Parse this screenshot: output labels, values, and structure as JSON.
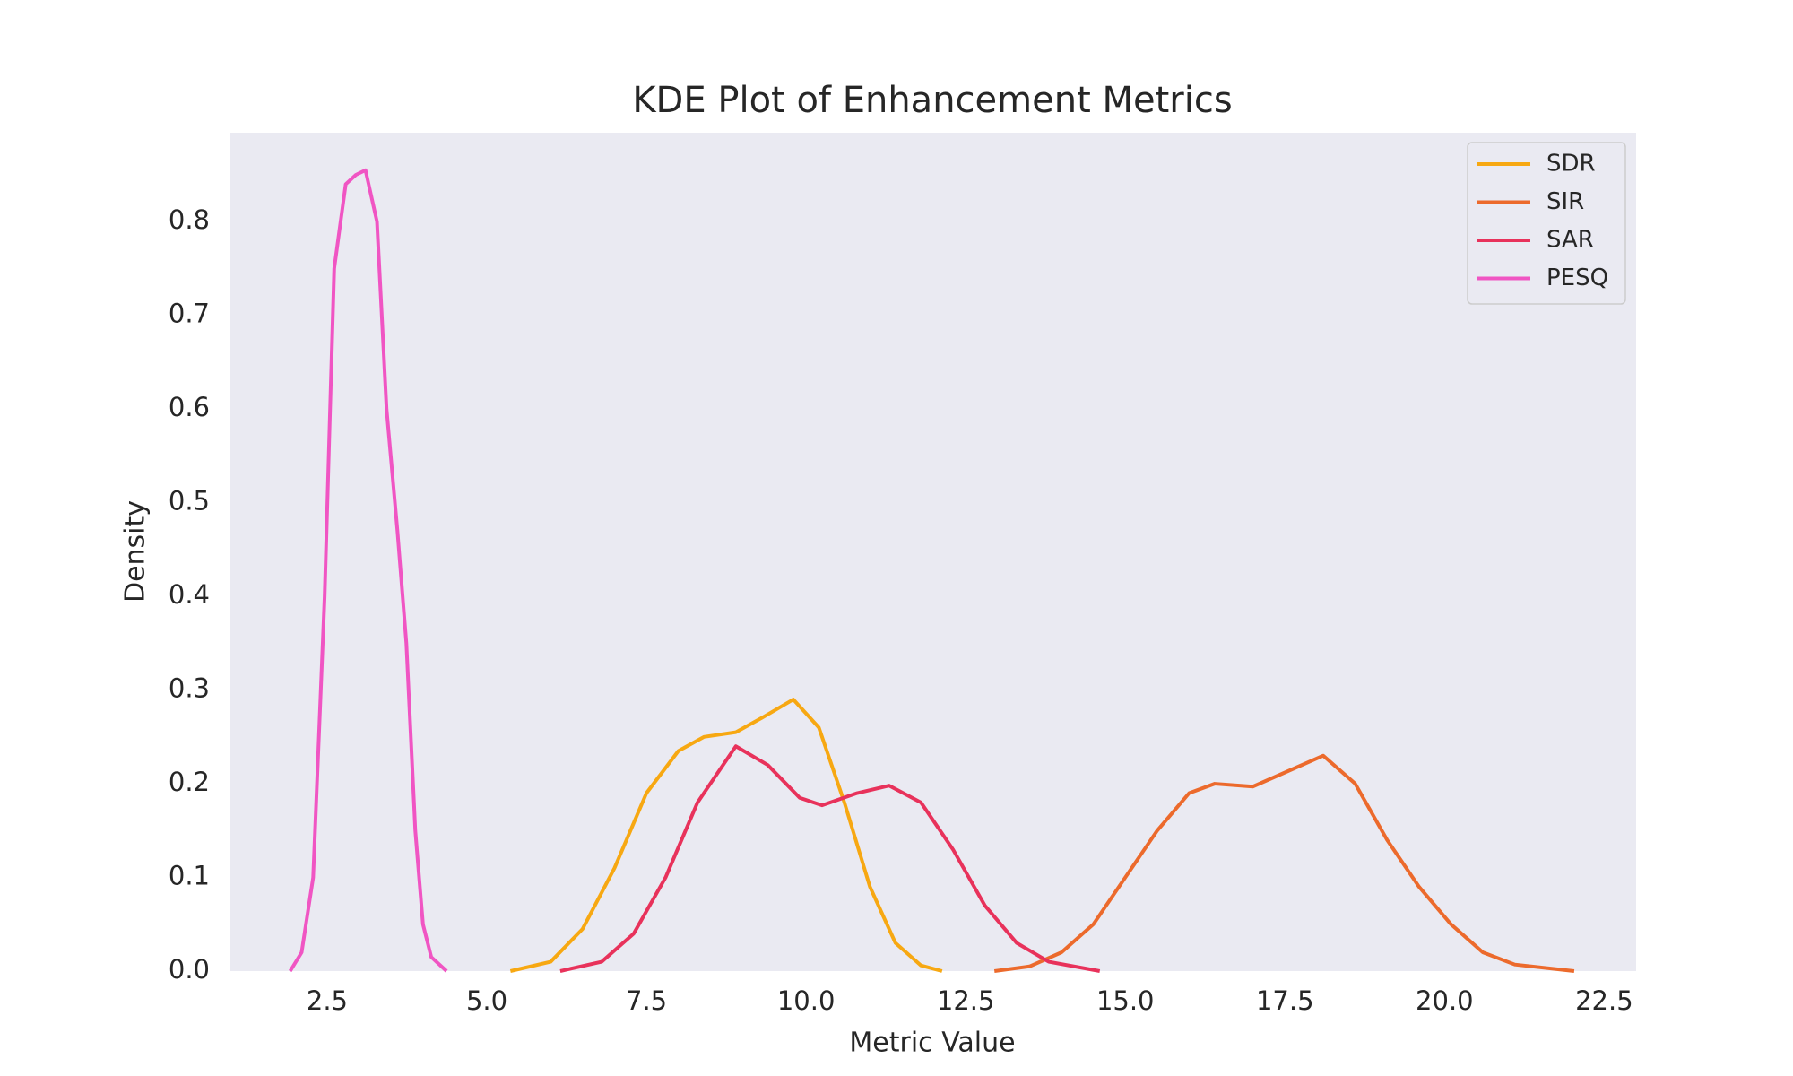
{
  "chart_data": {
    "type": "line",
    "title": "KDE Plot of Enhancement Metrics",
    "x_label": "Metric Value",
    "y_label": "Density",
    "xlim": [
      0.97,
      23.0
    ],
    "ylim": [
      0,
      0.895
    ],
    "xticks": [
      2.5,
      {
        "value": 5,
        "label": "5.0"
      },
      7.5,
      {
        "value": 10,
        "label": "10.0"
      },
      12.5,
      {
        "value": 15,
        "label": "15.0"
      },
      17.5,
      {
        "value": 20,
        "label": "20.0"
      },
      22.5
    ],
    "yticks": [
      {
        "value": 0,
        "label": "0.0"
      },
      0.1,
      0.2,
      0.3,
      0.4,
      0.5,
      0.6,
      0.7,
      0.8
    ],
    "grid": false,
    "legend": "upper right",
    "series": [
      {
        "name": "SDR",
        "color": "#f7a812",
        "x": [
          5.37,
          6.0,
          6.5,
          7.0,
          7.5,
          8.0,
          8.4,
          8.9,
          9.3,
          9.8,
          10.2,
          10.6,
          11.0,
          11.4,
          11.8,
          12.13
        ],
        "values": [
          0,
          0.01,
          0.045,
          0.11,
          0.19,
          0.235,
          0.25,
          0.255,
          0.27,
          0.29,
          0.26,
          0.18,
          0.09,
          0.03,
          0.006,
          0
        ]
      },
      {
        "name": "SIR",
        "color": "#ec6a2c",
        "x": [
          12.95,
          13.5,
          14.0,
          14.5,
          15.0,
          15.5,
          16.0,
          16.4,
          17.0,
          17.6,
          18.1,
          18.6,
          19.1,
          19.6,
          20.1,
          20.6,
          21.1,
          22.03
        ],
        "values": [
          0,
          0.005,
          0.02,
          0.05,
          0.1,
          0.15,
          0.19,
          0.2,
          0.197,
          0.215,
          0.23,
          0.2,
          0.14,
          0.09,
          0.05,
          0.02,
          0.007,
          0
        ]
      },
      {
        "name": "SAR",
        "color": "#e8325b",
        "x": [
          6.15,
          6.8,
          7.3,
          7.8,
          8.3,
          8.9,
          9.4,
          9.9,
          10.25,
          10.8,
          11.3,
          11.8,
          12.3,
          12.8,
          13.3,
          13.8,
          14.6
        ],
        "values": [
          0,
          0.01,
          0.04,
          0.1,
          0.18,
          0.24,
          0.22,
          0.185,
          0.177,
          0.19,
          0.198,
          0.18,
          0.13,
          0.07,
          0.03,
          0.01,
          0
        ]
      },
      {
        "name": "PESQ",
        "color": "#f055c3",
        "x": [
          1.92,
          2.1,
          2.28,
          2.46,
          2.61,
          2.79,
          2.95,
          3.1,
          3.28,
          3.43,
          3.6,
          3.74,
          3.88,
          4.0,
          4.13,
          4.37
        ],
        "values": [
          0,
          0.02,
          0.1,
          0.4,
          0.75,
          0.84,
          0.85,
          0.855,
          0.8,
          0.6,
          0.47,
          0.35,
          0.15,
          0.05,
          0.015,
          0
        ]
      }
    ]
  }
}
